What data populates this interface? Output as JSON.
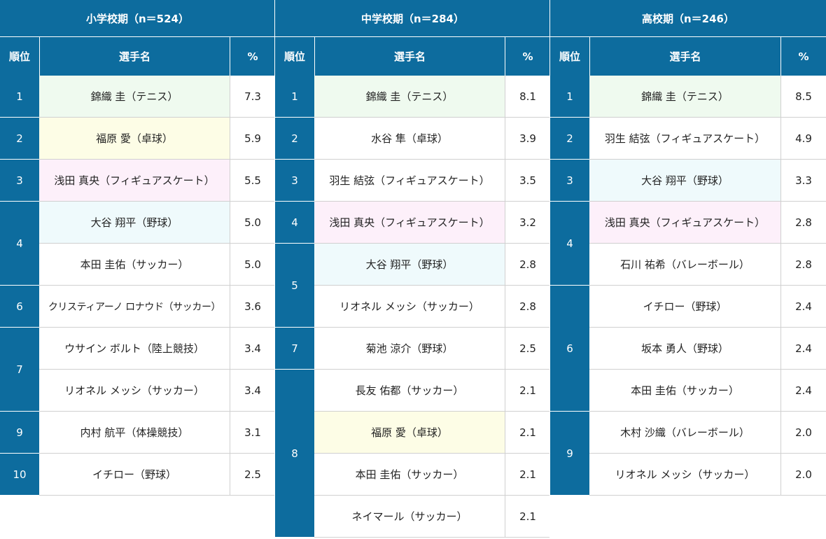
{
  "headers": {
    "rank": "順位",
    "name": "選手名",
    "pct": "%"
  },
  "colors": {
    "header_bg": "#0d6c9e",
    "green": "#effaef",
    "yellow": "#fdfde6",
    "pink": "#fdf0fa",
    "cyan": "#effafc"
  },
  "panels": [
    {
      "title": "小学校期（n＝524）",
      "rank_groups": [
        {
          "label": "1",
          "rows": 1
        },
        {
          "label": "2",
          "rows": 1
        },
        {
          "label": "3",
          "rows": 1
        },
        {
          "label": "4",
          "rows": 2
        },
        {
          "label": "6",
          "rows": 1
        },
        {
          "label": "7",
          "rows": 2
        },
        {
          "label": "9",
          "rows": 1
        },
        {
          "label": "10",
          "rows": 1
        }
      ],
      "rows": [
        {
          "name": "錦織 圭（テニス）",
          "pct": "7.3",
          "hl": "green"
        },
        {
          "name": "福原 愛（卓球）",
          "pct": "5.9",
          "hl": "yellow"
        },
        {
          "name": "浅田 真央（フィギュアスケート）",
          "pct": "5.5",
          "hl": "pink"
        },
        {
          "name": "大谷 翔平（野球）",
          "pct": "5.0",
          "hl": "cyan"
        },
        {
          "name": "本田 圭佑（サッカー）",
          "pct": "5.0",
          "hl": ""
        },
        {
          "name": "クリスティアーノ ロナウド（サッカー）",
          "pct": "3.6",
          "hl": "",
          "small": true
        },
        {
          "name": "ウサイン ボルト（陸上競技）",
          "pct": "3.4",
          "hl": ""
        },
        {
          "name": "リオネル メッシ（サッカー）",
          "pct": "3.4",
          "hl": ""
        },
        {
          "name": "内村 航平（体操競技）",
          "pct": "3.1",
          "hl": ""
        },
        {
          "name": "イチロー（野球）",
          "pct": "2.5",
          "hl": ""
        }
      ]
    },
    {
      "title": "中学校期（n＝284）",
      "rank_groups": [
        {
          "label": "1",
          "rows": 1
        },
        {
          "label": "2",
          "rows": 1
        },
        {
          "label": "3",
          "rows": 1
        },
        {
          "label": "4",
          "rows": 1
        },
        {
          "label": "5",
          "rows": 2
        },
        {
          "label": "7",
          "rows": 1
        },
        {
          "label": "8",
          "rows": 4
        }
      ],
      "rows": [
        {
          "name": "錦織 圭（テニス）",
          "pct": "8.1",
          "hl": "green"
        },
        {
          "name": "水谷 隼（卓球）",
          "pct": "3.9",
          "hl": ""
        },
        {
          "name": "羽生 結弦（フィギュアスケート）",
          "pct": "3.5",
          "hl": ""
        },
        {
          "name": "浅田 真央（フィギュアスケート）",
          "pct": "3.2",
          "hl": "pink"
        },
        {
          "name": "大谷 翔平（野球）",
          "pct": "2.8",
          "hl": "cyan"
        },
        {
          "name": "リオネル メッシ（サッカー）",
          "pct": "2.8",
          "hl": ""
        },
        {
          "name": "菊池 涼介（野球）",
          "pct": "2.5",
          "hl": ""
        },
        {
          "name": "長友 佑都（サッカー）",
          "pct": "2.1",
          "hl": ""
        },
        {
          "name": "福原 愛（卓球）",
          "pct": "2.1",
          "hl": "yellow"
        },
        {
          "name": "本田 圭佑（サッカー）",
          "pct": "2.1",
          "hl": ""
        },
        {
          "name": "ネイマール（サッカー）",
          "pct": "2.1",
          "hl": ""
        }
      ]
    },
    {
      "title": "高校期（n＝246）",
      "rank_groups": [
        {
          "label": "1",
          "rows": 1
        },
        {
          "label": "2",
          "rows": 1
        },
        {
          "label": "3",
          "rows": 1
        },
        {
          "label": "4",
          "rows": 2
        },
        {
          "label": "6",
          "rows": 3
        },
        {
          "label": "9",
          "rows": 2
        }
      ],
      "rows": [
        {
          "name": "錦織 圭（テニス）",
          "pct": "8.5",
          "hl": "green"
        },
        {
          "name": "羽生 結弦（フィギュアスケート）",
          "pct": "4.9",
          "hl": ""
        },
        {
          "name": "大谷 翔平（野球）",
          "pct": "3.3",
          "hl": "cyan"
        },
        {
          "name": "浅田 真央（フィギュアスケート）",
          "pct": "2.8",
          "hl": "pink"
        },
        {
          "name": "石川 祐希（バレーボール）",
          "pct": "2.8",
          "hl": ""
        },
        {
          "name": "イチロー（野球）",
          "pct": "2.4",
          "hl": ""
        },
        {
          "name": "坂本 勇人（野球）",
          "pct": "2.4",
          "hl": ""
        },
        {
          "name": "本田 圭佑（サッカー）",
          "pct": "2.4",
          "hl": ""
        },
        {
          "name": "木村 沙織（バレーボール）",
          "pct": "2.0",
          "hl": ""
        },
        {
          "name": "リオネル メッシ（サッカー）",
          "pct": "2.0",
          "hl": ""
        }
      ]
    }
  ]
}
